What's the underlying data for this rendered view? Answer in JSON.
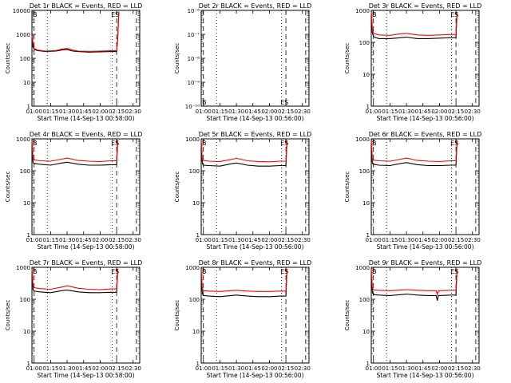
{
  "chart_data": [
    {
      "type": "line",
      "title": "Det 1r BLACK = Events, RED = LLD",
      "xlabel": "Start Time (14-Sep-13 00:58:00)",
      "ylabel": "Counts/sec",
      "x_ticks": [
        "01:00",
        "01:15",
        "01:30",
        "01:45",
        "02:00",
        "02:15",
        "02:30"
      ],
      "y_scale": "log",
      "ylim": [
        1,
        10000
      ],
      "y_ticks": [
        "1",
        "10",
        "100",
        "1000",
        "10000"
      ],
      "markers": [
        "B",
        "ES"
      ],
      "has_data": true,
      "series": [
        {
          "color": "#000000",
          "x": [
            "00:58",
            "00:59",
            "01:00",
            "01:03",
            "01:10",
            "01:20",
            "01:25",
            "01:30",
            "01:35",
            "01:40",
            "01:50",
            "02:00",
            "02:10",
            "02:15",
            "02:16",
            "02:17"
          ],
          "y": [
            500,
            300,
            230,
            210,
            190,
            200,
            220,
            230,
            200,
            190,
            180,
            185,
            190,
            190,
            600,
            8000
          ]
        },
        {
          "color": "#ff0000",
          "x": [
            "00:58",
            "00:59",
            "01:00",
            "01:03",
            "01:10",
            "01:20",
            "01:25",
            "01:30",
            "01:35",
            "01:40",
            "01:50",
            "02:00",
            "02:10",
            "02:15",
            "02:16",
            "02:17"
          ],
          "y": [
            900,
            400,
            260,
            220,
            200,
            210,
            240,
            260,
            220,
            200,
            195,
            200,
            205,
            205,
            700,
            9000
          ]
        }
      ]
    },
    {
      "type": "line",
      "title": "Det 2r BLACK = Events, RED = LLD",
      "xlabel": "Start Time (14-Sep-13 00:56:00)",
      "ylabel": "Counts/sec",
      "x_ticks": [
        "01:00",
        "01:15",
        "01:30",
        "01:45",
        "02:00",
        "02:15",
        "02:30"
      ],
      "y_scale": "log",
      "ylim": [
        1e-10,
        1e-06
      ],
      "y_ticks": [
        "10⁻¹⁰",
        "10⁻⁹",
        "10⁻⁸",
        "10⁻⁷",
        "10⁻⁶"
      ],
      "markers": [
        "B",
        "ES"
      ],
      "has_data": false,
      "series": []
    },
    {
      "type": "line",
      "title": "Det 3r BLACK = Events, RED = LLD",
      "xlabel": "Start Time (14-Sep-13 00:56:00)",
      "ylabel": "Counts/sec",
      "x_ticks": [
        "01:00",
        "01:15",
        "01:30",
        "01:45",
        "02:00",
        "02:15",
        "02:30"
      ],
      "y_scale": "log",
      "ylim": [
        1,
        1000
      ],
      "y_ticks": [
        "1",
        "10",
        "100",
        "1000"
      ],
      "markers": [
        "B",
        "ES"
      ],
      "has_data": true,
      "series": [
        {
          "color": "#000000",
          "x": [
            "00:58",
            "00:59",
            "01:00",
            "01:05",
            "01:15",
            "01:25",
            "01:30",
            "01:40",
            "01:50",
            "02:00",
            "02:10",
            "02:15",
            "02:16"
          ],
          "y": [
            700,
            200,
            150,
            130,
            130,
            140,
            145,
            130,
            130,
            135,
            140,
            140,
            800
          ]
        },
        {
          "color": "#ff0000",
          "x": [
            "00:58",
            "00:59",
            "01:00",
            "01:05",
            "01:15",
            "01:25",
            "01:30",
            "01:40",
            "01:50",
            "02:00",
            "02:10",
            "02:15",
            "02:16"
          ],
          "y": [
            900,
            260,
            190,
            170,
            165,
            185,
            190,
            170,
            165,
            170,
            175,
            175,
            900
          ]
        }
      ]
    },
    {
      "type": "line",
      "title": "Det 4r BLACK = Events, RED = LLD",
      "xlabel": "Start Time (14-Sep-13 00:58:00)",
      "ylabel": "Counts/sec",
      "x_ticks": [
        "01:00",
        "01:15",
        "01:30",
        "01:45",
        "02:00",
        "02:15",
        "02:30"
      ],
      "y_scale": "log",
      "ylim": [
        1,
        1000
      ],
      "y_ticks": [
        "1",
        "10",
        "100",
        "1000"
      ],
      "markers": [
        "B",
        "ES"
      ],
      "has_data": true,
      "series": [
        {
          "color": "#000000",
          "x": [
            "00:58",
            "00:59",
            "01:00",
            "01:05",
            "01:15",
            "01:25",
            "01:30",
            "01:40",
            "01:50",
            "02:00",
            "02:10",
            "02:15",
            "02:16"
          ],
          "y": [
            600,
            180,
            170,
            160,
            150,
            175,
            185,
            160,
            150,
            150,
            155,
            155,
            800
          ]
        },
        {
          "color": "#ff0000",
          "x": [
            "00:58",
            "00:59",
            "01:00",
            "01:05",
            "01:15",
            "01:25",
            "01:30",
            "01:40",
            "01:50",
            "02:00",
            "02:10",
            "02:15",
            "02:16"
          ],
          "y": [
            900,
            240,
            220,
            205,
            200,
            230,
            250,
            210,
            200,
            195,
            205,
            205,
            900
          ]
        }
      ]
    },
    {
      "type": "line",
      "title": "Det 5r BLACK = Events, RED = LLD",
      "xlabel": "Start Time (14-Sep-13 00:56:00)",
      "ylabel": "Counts/sec",
      "x_ticks": [
        "01:00",
        "01:15",
        "01:30",
        "01:45",
        "02:00",
        "02:15",
        "02:30"
      ],
      "y_scale": "log",
      "ylim": [
        1,
        1000
      ],
      "y_ticks": [
        "1",
        "10",
        "100",
        "1000"
      ],
      "markers": [
        "B",
        "ES"
      ],
      "has_data": true,
      "series": [
        {
          "color": "#000000",
          "x": [
            "00:58",
            "00:59",
            "01:00",
            "01:05",
            "01:15",
            "01:25",
            "01:30",
            "01:40",
            "01:50",
            "02:00",
            "02:10",
            "02:15",
            "02:16"
          ],
          "y": [
            700,
            170,
            150,
            145,
            140,
            165,
            175,
            150,
            140,
            140,
            145,
            145,
            800
          ]
        },
        {
          "color": "#ff0000",
          "x": [
            "00:58",
            "00:59",
            "01:00",
            "01:05",
            "01:15",
            "01:25",
            "01:30",
            "01:40",
            "01:50",
            "02:00",
            "02:10",
            "02:15",
            "02:16"
          ],
          "y": [
            900,
            230,
            210,
            200,
            195,
            225,
            245,
            205,
            195,
            190,
            200,
            200,
            900
          ]
        }
      ]
    },
    {
      "type": "line",
      "title": "Det 6r BLACK = Events, RED = LLD",
      "xlabel": "Start Time (14-Sep-13 00:56:00)",
      "ylabel": "Counts/sec",
      "x_ticks": [
        "01:00",
        "01:15",
        "01:30",
        "01:45",
        "02:00",
        "02:15",
        "02:30"
      ],
      "y_scale": "log",
      "ylim": [
        1,
        1000
      ],
      "y_ticks": [
        "1",
        "10",
        "100",
        "1000"
      ],
      "markers": [
        "B",
        "ES"
      ],
      "has_data": true,
      "series": [
        {
          "color": "#000000",
          "x": [
            "00:58",
            "00:59",
            "01:00",
            "01:05",
            "01:15",
            "01:25",
            "01:30",
            "01:40",
            "01:50",
            "02:00",
            "02:10",
            "02:15",
            "02:16"
          ],
          "y": [
            600,
            170,
            160,
            150,
            145,
            170,
            180,
            155,
            145,
            145,
            150,
            150,
            800
          ]
        },
        {
          "color": "#ff0000",
          "x": [
            "00:58",
            "00:59",
            "01:00",
            "01:05",
            "01:15",
            "01:25",
            "01:30",
            "01:40",
            "01:50",
            "02:00",
            "02:10",
            "02:15",
            "02:16"
          ],
          "y": [
            900,
            240,
            215,
            205,
            200,
            230,
            250,
            210,
            200,
            195,
            205,
            205,
            900
          ]
        }
      ]
    },
    {
      "type": "line",
      "title": "Det 7r BLACK = Events, RED = LLD",
      "xlabel": "Start Time (14-Sep-13 00:58:00)",
      "ylabel": "Counts/sec",
      "x_ticks": [
        "01:00",
        "01:15",
        "01:30",
        "01:45",
        "02:00",
        "02:15",
        "02:30"
      ],
      "y_scale": "log",
      "ylim": [
        1,
        1000
      ],
      "y_ticks": [
        "1",
        "10",
        "100",
        "1000"
      ],
      "markers": [
        "B",
        "ES"
      ],
      "has_data": true,
      "series": [
        {
          "color": "#000000",
          "x": [
            "00:58",
            "00:59",
            "01:00",
            "01:05",
            "01:15",
            "01:25",
            "01:30",
            "01:40",
            "01:50",
            "02:00",
            "02:10",
            "02:15",
            "02:16"
          ],
          "y": [
            700,
            200,
            180,
            170,
            160,
            185,
            195,
            170,
            160,
            160,
            165,
            165,
            800
          ]
        },
        {
          "color": "#ff0000",
          "x": [
            "00:58",
            "00:59",
            "01:00",
            "01:05",
            "01:15",
            "01:25",
            "01:30",
            "01:40",
            "01:50",
            "02:00",
            "02:10",
            "02:15",
            "02:16"
          ],
          "y": [
            900,
            260,
            230,
            215,
            205,
            240,
            265,
            220,
            205,
            200,
            210,
            210,
            900
          ]
        }
      ]
    },
    {
      "type": "line",
      "title": "Det 8r BLACK = Events, RED = LLD",
      "xlabel": "Start Time (14-Sep-13 00:56:00)",
      "ylabel": "Counts/sec",
      "x_ticks": [
        "01:00",
        "01:15",
        "01:30",
        "01:45",
        "02:00",
        "02:15",
        "02:30"
      ],
      "y_scale": "log",
      "ylim": [
        1,
        1000
      ],
      "y_ticks": [
        "1",
        "10",
        "100",
        "1000"
      ],
      "markers": [
        "B",
        "ES"
      ],
      "has_data": true,
      "series": [
        {
          "color": "#000000",
          "x": [
            "00:58",
            "00:59",
            "01:00",
            "01:05",
            "01:15",
            "01:25",
            "01:30",
            "01:40",
            "01:50",
            "02:00",
            "02:10",
            "02:15",
            "02:16"
          ],
          "y": [
            600,
            150,
            130,
            125,
            120,
            130,
            135,
            125,
            120,
            120,
            125,
            125,
            800
          ]
        },
        {
          "color": "#ff0000",
          "x": [
            "00:58",
            "00:59",
            "01:00",
            "01:05",
            "01:15",
            "01:25",
            "01:30",
            "01:40",
            "01:50",
            "02:00",
            "02:10",
            "02:15",
            "02:16"
          ],
          "y": [
            900,
            220,
            185,
            180,
            175,
            185,
            190,
            180,
            175,
            175,
            180,
            180,
            900
          ]
        }
      ]
    },
    {
      "type": "line",
      "title": "Det 9r BLACK = Events, RED = LLD",
      "xlabel": "Start Time (14-Sep-13 00:56:00)",
      "ylabel": "Counts/sec",
      "x_ticks": [
        "01:00",
        "01:15",
        "01:30",
        "01:45",
        "02:00",
        "02:15",
        "02:30"
      ],
      "y_scale": "log",
      "ylim": [
        1,
        1000
      ],
      "y_ticks": [
        "1",
        "10",
        "100",
        "1000"
      ],
      "markers": [
        "B",
        "ES"
      ],
      "has_data": true,
      "series": [
        {
          "color": "#000000",
          "x": [
            "00:58",
            "00:59",
            "01:00",
            "01:05",
            "01:15",
            "01:25",
            "01:30",
            "01:40",
            "01:50",
            "01:57",
            "01:58",
            "01:59",
            "02:00",
            "02:10",
            "02:15",
            "02:16"
          ],
          "y": [
            600,
            160,
            140,
            135,
            130,
            140,
            145,
            135,
            130,
            130,
            90,
            130,
            130,
            135,
            135,
            800
          ]
        },
        {
          "color": "#ff0000",
          "x": [
            "00:58",
            "00:59",
            "01:00",
            "01:05",
            "01:15",
            "01:25",
            "01:30",
            "01:40",
            "01:50",
            "01:57",
            "01:58",
            "01:59",
            "02:00",
            "02:10",
            "02:15",
            "02:16"
          ],
          "y": [
            900,
            230,
            195,
            190,
            185,
            195,
            200,
            190,
            185,
            185,
            140,
            185,
            185,
            190,
            190,
            900
          ]
        }
      ]
    }
  ]
}
